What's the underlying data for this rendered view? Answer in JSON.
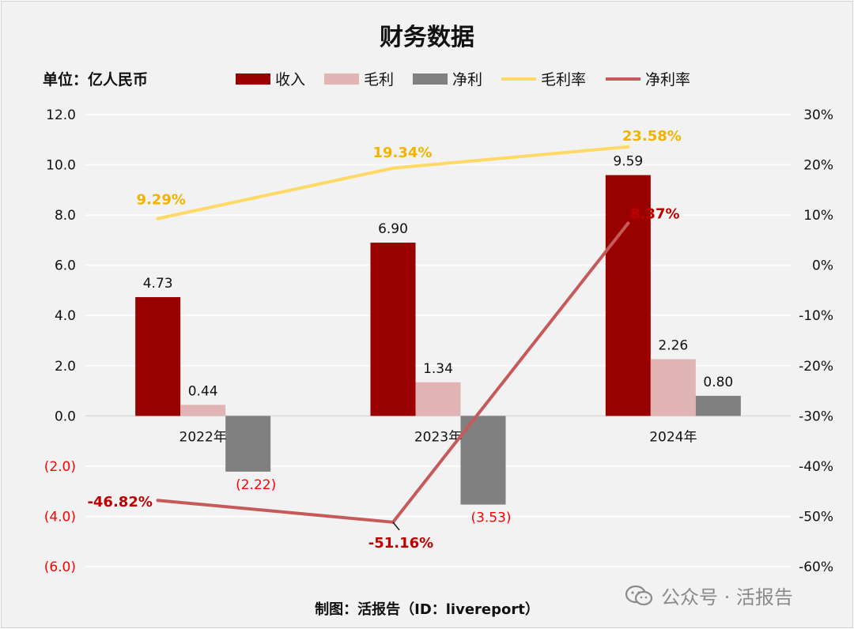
{
  "title": "财务数据",
  "unit_label": "单位：亿人民币",
  "footer": "制图：活报告（ID：livereport）",
  "watermark": "公众号 · 活报告",
  "colors": {
    "revenue": "#990000",
    "gross_profit": "#e0b4b4",
    "net_profit": "#808080",
    "gross_margin": "#ffd966",
    "net_margin": "#c55a5a",
    "negative_tick": "#ff0000",
    "gross_margin_label": "#f0b400",
    "net_margin_label": "#c00000"
  },
  "chart_data": {
    "type": "bar",
    "title": "财务数据",
    "categories": [
      "2022年",
      "2023年",
      "2024年"
    ],
    "series": [
      {
        "name": "收入",
        "kind": "bar",
        "axis": "left",
        "values": [
          4.73,
          6.9,
          9.59
        ],
        "labels": [
          "4.73",
          "6.90",
          "9.59"
        ]
      },
      {
        "name": "毛利",
        "kind": "bar",
        "axis": "left",
        "values": [
          0.44,
          1.34,
          2.26
        ],
        "labels": [
          "0.44",
          "1.34",
          "2.26"
        ]
      },
      {
        "name": "净利",
        "kind": "bar",
        "axis": "left",
        "values": [
          -2.22,
          -3.53,
          0.8
        ],
        "labels": [
          "(2.22)",
          "(3.53)",
          "0.80"
        ]
      },
      {
        "name": "毛利率",
        "kind": "line",
        "axis": "right",
        "values": [
          9.29,
          19.34,
          23.58
        ],
        "labels": [
          "9.29%",
          "19.34%",
          "23.58%"
        ]
      },
      {
        "name": "净利率",
        "kind": "line",
        "axis": "right",
        "values": [
          -46.82,
          -51.16,
          8.37
        ],
        "labels": [
          "-46.82%",
          "-51.16%",
          "8.37%"
        ]
      }
    ],
    "y_left": {
      "range": [
        -6,
        12
      ],
      "ticks": [
        12,
        10,
        8,
        6,
        4,
        2,
        0,
        -2,
        -4,
        -6
      ],
      "tick_labels": [
        "12.0",
        "10.0",
        "8.0",
        "6.0",
        "4.0",
        "2.0",
        "0.0",
        "(2.0)",
        "(4.0)",
        "(6.0)"
      ]
    },
    "y_right": {
      "range": [
        -60,
        30
      ],
      "ticks": [
        30,
        20,
        10,
        0,
        -10,
        -20,
        -30,
        -40,
        -50,
        -60
      ],
      "tick_labels": [
        "30%",
        "20%",
        "10%",
        "0%",
        "-10%",
        "-20%",
        "-30%",
        "-40%",
        "-50%",
        "-60%"
      ]
    },
    "grid": true,
    "legend": "top"
  }
}
